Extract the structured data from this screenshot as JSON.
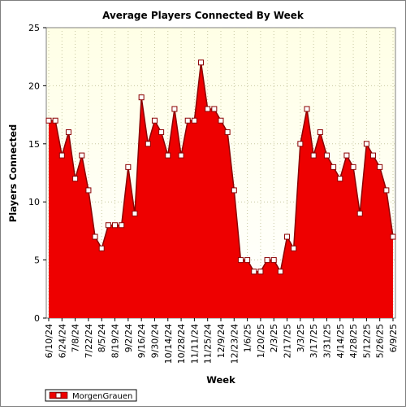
{
  "chart_data": {
    "type": "area",
    "title": "Average Players Connected By Week",
    "xlabel": "Week",
    "ylabel": "Players Connected",
    "ylim": [
      0,
      25
    ],
    "yticks": [
      0,
      5,
      10,
      15,
      20,
      25
    ],
    "grid": true,
    "legend_position": "bottom-left",
    "colors": {
      "fill": "#ee0000",
      "line": "#8b0000",
      "marker_fill": "#ffffff",
      "plot_background_top": "#ffffe6",
      "plot_background_bottom": "#ffffff",
      "grid": "#c8c8a0"
    },
    "x": [
      "6/10/24",
      "6/17/24",
      "6/24/24",
      "7/1/24",
      "7/8/24",
      "7/15/24",
      "7/22/24",
      "7/29/24",
      "8/5/24",
      "8/12/24",
      "8/19/24",
      "8/26/24",
      "9/2/24",
      "9/9/24",
      "9/16/24",
      "9/23/24",
      "9/30/24",
      "10/7/24",
      "10/14/24",
      "10/21/24",
      "10/28/24",
      "11/4/24",
      "11/11/24",
      "11/18/24",
      "11/25/24",
      "12/2/24",
      "12/9/24",
      "12/16/24",
      "12/23/24",
      "12/30/24",
      "1/6/25",
      "1/13/25",
      "1/20/25",
      "1/27/25",
      "2/3/25",
      "2/10/25",
      "2/17/25",
      "2/24/25",
      "3/3/25",
      "3/10/25",
      "3/17/25",
      "3/24/25",
      "3/31/25",
      "4/7/25",
      "4/14/25",
      "4/21/25",
      "4/28/25",
      "5/5/25",
      "5/12/25",
      "5/19/25",
      "5/26/25",
      "6/2/25",
      "6/9/25"
    ],
    "xtick_labels": [
      "6/10/24",
      "6/24/24",
      "7/8/24",
      "7/22/24",
      "8/5/24",
      "8/19/24",
      "9/2/24",
      "9/16/24",
      "9/30/24",
      "10/14/24",
      "10/28/24",
      "11/11/24",
      "11/25/24",
      "12/9/24",
      "12/23/24",
      "1/6/25",
      "1/20/25",
      "2/3/25",
      "2/17/25",
      "3/3/25",
      "3/17/25",
      "3/31/25",
      "4/14/25",
      "4/28/25",
      "5/12/25",
      "5/26/25",
      "6/9/25"
    ],
    "series": [
      {
        "name": "MorgenGrauen",
        "values": [
          17,
          17,
          14,
          16,
          12,
          14,
          11,
          7,
          6,
          8,
          8,
          8,
          13,
          9,
          19,
          15,
          17,
          16,
          14,
          18,
          14,
          17,
          17,
          22,
          18,
          18,
          17,
          16,
          11,
          5,
          5,
          4,
          4,
          5,
          5,
          4,
          7,
          6,
          15,
          18,
          14,
          16,
          14,
          13,
          12,
          14,
          13,
          9,
          15,
          14,
          13,
          11,
          7
        ]
      }
    ]
  }
}
